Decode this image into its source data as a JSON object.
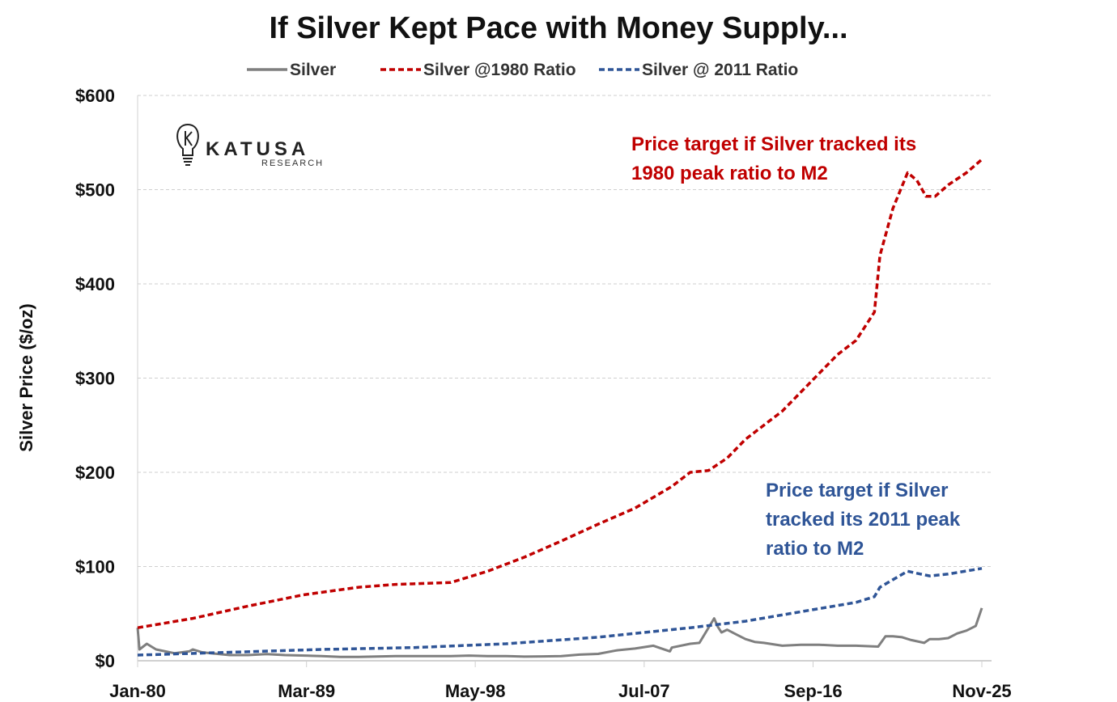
{
  "chart_data": {
    "type": "line",
    "title": "If Silver Kept Pace with Money Supply...",
    "ylabel": "Silver Price ($/oz)",
    "xlabel": "",
    "xlim": [
      1980.0,
      2025.83
    ],
    "ylim": [
      0,
      600
    ],
    "grid": "horizontal dashed",
    "legend_position": "top",
    "x_ticks": [
      {
        "label": "Jan-80",
        "x": 1980.0
      },
      {
        "label": "Mar-89",
        "x": 1989.17
      },
      {
        "label": "May-98",
        "x": 1998.33
      },
      {
        "label": "Jul-07",
        "x": 2007.5
      },
      {
        "label": "Sep-16",
        "x": 2016.67
      },
      {
        "label": "Nov-25",
        "x": 2025.83
      }
    ],
    "y_ticks": [
      {
        "label": "$0",
        "y": 0
      },
      {
        "label": "$100",
        "y": 100
      },
      {
        "label": "$200",
        "y": 200
      },
      {
        "label": "$300",
        "y": 300
      },
      {
        "label": "$400",
        "y": 400
      },
      {
        "label": "$500",
        "y": 500
      },
      {
        "label": "$600",
        "y": 600
      }
    ],
    "series": [
      {
        "name": "Silver",
        "color": "#7f7f7f",
        "style": "solid",
        "points": [
          [
            1980.0,
            35
          ],
          [
            1980.1,
            12
          ],
          [
            1980.5,
            18
          ],
          [
            1981,
            12
          ],
          [
            1982,
            8
          ],
          [
            1982.8,
            10
          ],
          [
            1983,
            12
          ],
          [
            1983.5,
            9
          ],
          [
            1984,
            8
          ],
          [
            1985,
            6
          ],
          [
            1986,
            6
          ],
          [
            1987,
            7
          ],
          [
            1988,
            6
          ],
          [
            1990,
            5
          ],
          [
            1991,
            4
          ],
          [
            1992,
            4
          ],
          [
            1993,
            4.5
          ],
          [
            1994,
            5
          ],
          [
            1995,
            5
          ],
          [
            1996,
            5
          ],
          [
            1997,
            5
          ],
          [
            1998,
            5.5
          ],
          [
            1999,
            5
          ],
          [
            2000,
            5
          ],
          [
            2001,
            4.4
          ],
          [
            2002,
            4.6
          ],
          [
            2003,
            5
          ],
          [
            2004,
            6.5
          ],
          [
            2005,
            7.3
          ],
          [
            2006,
            11
          ],
          [
            2007,
            13
          ],
          [
            2008,
            16
          ],
          [
            2008.9,
            10
          ],
          [
            2009,
            14
          ],
          [
            2010,
            18
          ],
          [
            2010.5,
            19
          ],
          [
            2011.3,
            45
          ],
          [
            2011.5,
            36
          ],
          [
            2011.7,
            30
          ],
          [
            2012,
            33
          ],
          [
            2012.5,
            28
          ],
          [
            2013,
            23
          ],
          [
            2013.5,
            20
          ],
          [
            2014,
            19
          ],
          [
            2015,
            16
          ],
          [
            2016,
            17
          ],
          [
            2017,
            17
          ],
          [
            2018,
            16
          ],
          [
            2019,
            16
          ],
          [
            2020.2,
            15
          ],
          [
            2020.6,
            26
          ],
          [
            2021,
            26
          ],
          [
            2021.5,
            25
          ],
          [
            2022,
            22
          ],
          [
            2022.7,
            19
          ],
          [
            2023,
            23
          ],
          [
            2023.5,
            23
          ],
          [
            2024,
            24
          ],
          [
            2024.5,
            29
          ],
          [
            2025,
            32
          ],
          [
            2025.5,
            37
          ],
          [
            2025.83,
            56
          ]
        ]
      },
      {
        "name": "Silver @1980 Ratio",
        "color": "#c00000",
        "style": "dashed",
        "points": [
          [
            1980.0,
            35
          ],
          [
            1983,
            45
          ],
          [
            1986,
            58
          ],
          [
            1989,
            70
          ],
          [
            1992,
            78
          ],
          [
            1994,
            81
          ],
          [
            1997,
            83
          ],
          [
            1999,
            95
          ],
          [
            2001,
            110
          ],
          [
            2003,
            127
          ],
          [
            2005,
            145
          ],
          [
            2007,
            162
          ],
          [
            2009,
            185
          ],
          [
            2010,
            200
          ],
          [
            2011,
            202
          ],
          [
            2012,
            215
          ],
          [
            2013,
            235
          ],
          [
            2015,
            265
          ],
          [
            2017,
            305
          ],
          [
            2018,
            325
          ],
          [
            2019,
            340
          ],
          [
            2020.0,
            370
          ],
          [
            2020.3,
            430
          ],
          [
            2021,
            480
          ],
          [
            2021.8,
            518
          ],
          [
            2022.3,
            510
          ],
          [
            2022.8,
            493
          ],
          [
            2023.3,
            493
          ],
          [
            2024,
            505
          ],
          [
            2025,
            518
          ],
          [
            2025.83,
            532
          ]
        ]
      },
      {
        "name": "Silver @ 2011 Ratio",
        "color": "#2f5597",
        "style": "dashed",
        "points": [
          [
            1980.0,
            6
          ],
          [
            1985,
            9
          ],
          [
            1990,
            12
          ],
          [
            1995,
            14
          ],
          [
            2000,
            18
          ],
          [
            2005,
            25
          ],
          [
            2010,
            35
          ],
          [
            2013,
            42
          ],
          [
            2016,
            52
          ],
          [
            2019,
            62
          ],
          [
            2020.0,
            68
          ],
          [
            2020.3,
            78
          ],
          [
            2021,
            86
          ],
          [
            2021.8,
            95
          ],
          [
            2022.5,
            92
          ],
          [
            2023,
            90
          ],
          [
            2024,
            92
          ],
          [
            2025.83,
            98
          ]
        ]
      }
    ],
    "annotations": [
      {
        "color": "#c00000",
        "lines": [
          "Price target if Silver tracked its",
          "1980 peak ratio to M2"
        ]
      },
      {
        "color": "#2f5597",
        "lines": [
          "Price target if Silver",
          "tracked its 2011 peak",
          "ratio to M2"
        ]
      }
    ]
  },
  "logo": {
    "name": "KATUSA",
    "sub": "RESEARCH"
  }
}
